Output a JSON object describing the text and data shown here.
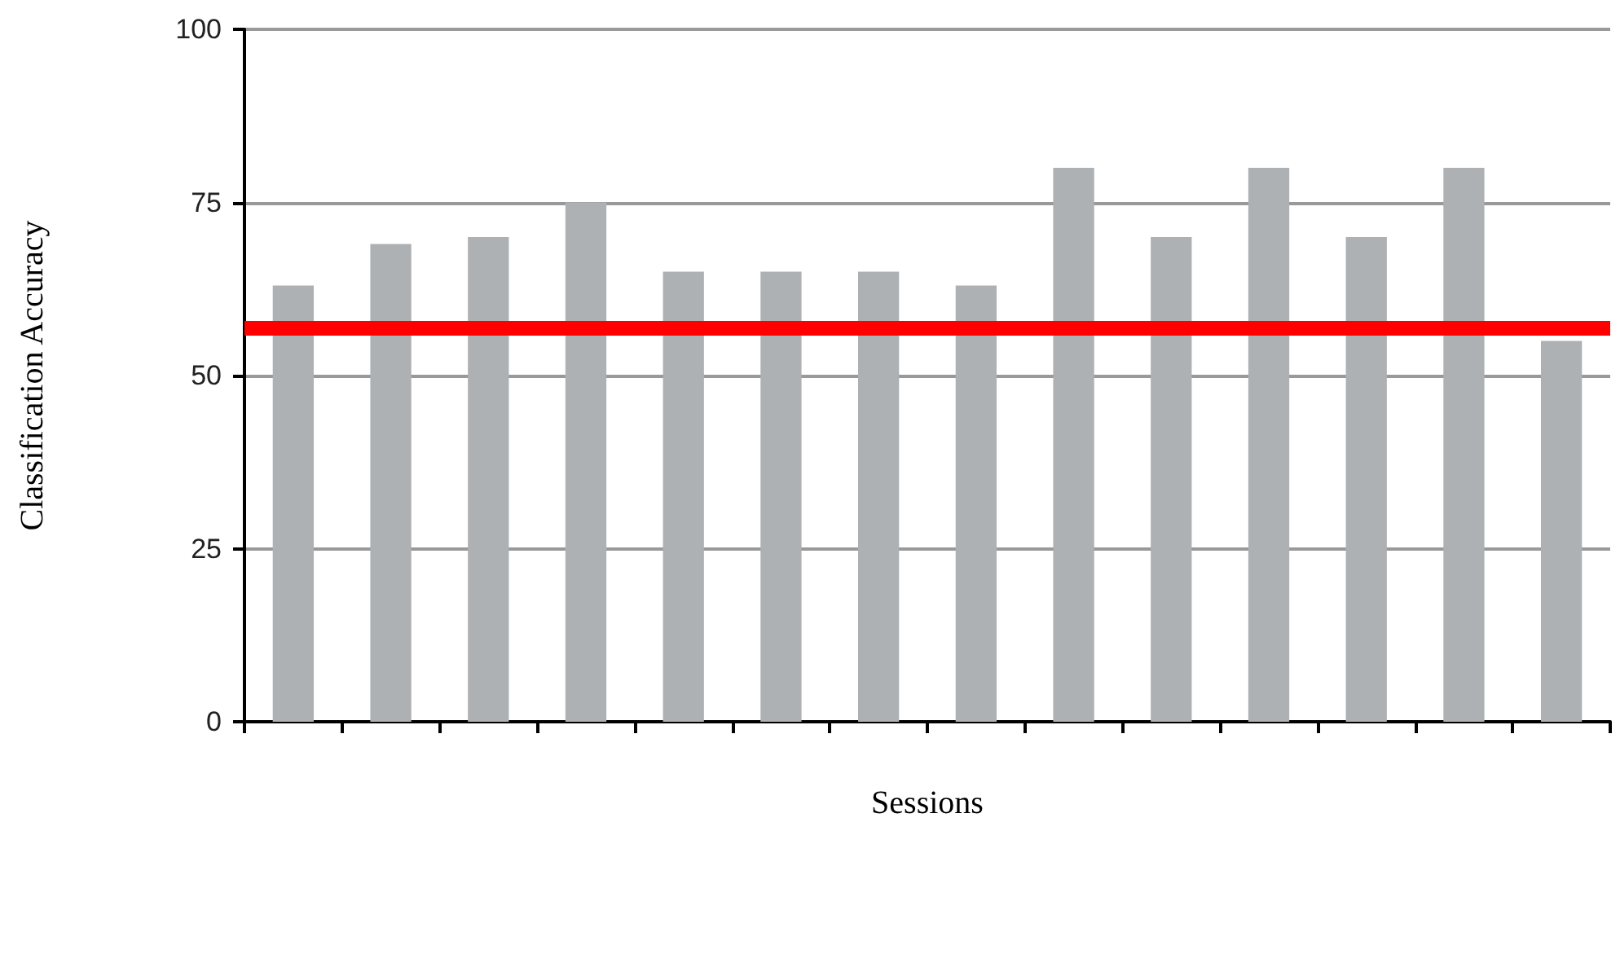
{
  "chart_data": {
    "type": "bar",
    "xlabel": "Sessions",
    "ylabel": "Classification Accuracy",
    "categories": [
      null,
      null,
      null,
      null,
      null,
      null,
      null,
      null,
      null,
      null,
      null,
      null,
      null,
      null
    ],
    "values": [
      63,
      69,
      70,
      75,
      65,
      65,
      65,
      63,
      80,
      70,
      80,
      70,
      80,
      55
    ],
    "color": "#adb1b4",
    "ylim": [
      0,
      100
    ],
    "yticks": [
      0,
      25,
      50,
      75,
      100
    ],
    "grid": "y",
    "ref_lines": [
      {
        "axis": "y",
        "value": 57,
        "color": "#ff0000"
      }
    ],
    "tick_labels": "y"
  }
}
